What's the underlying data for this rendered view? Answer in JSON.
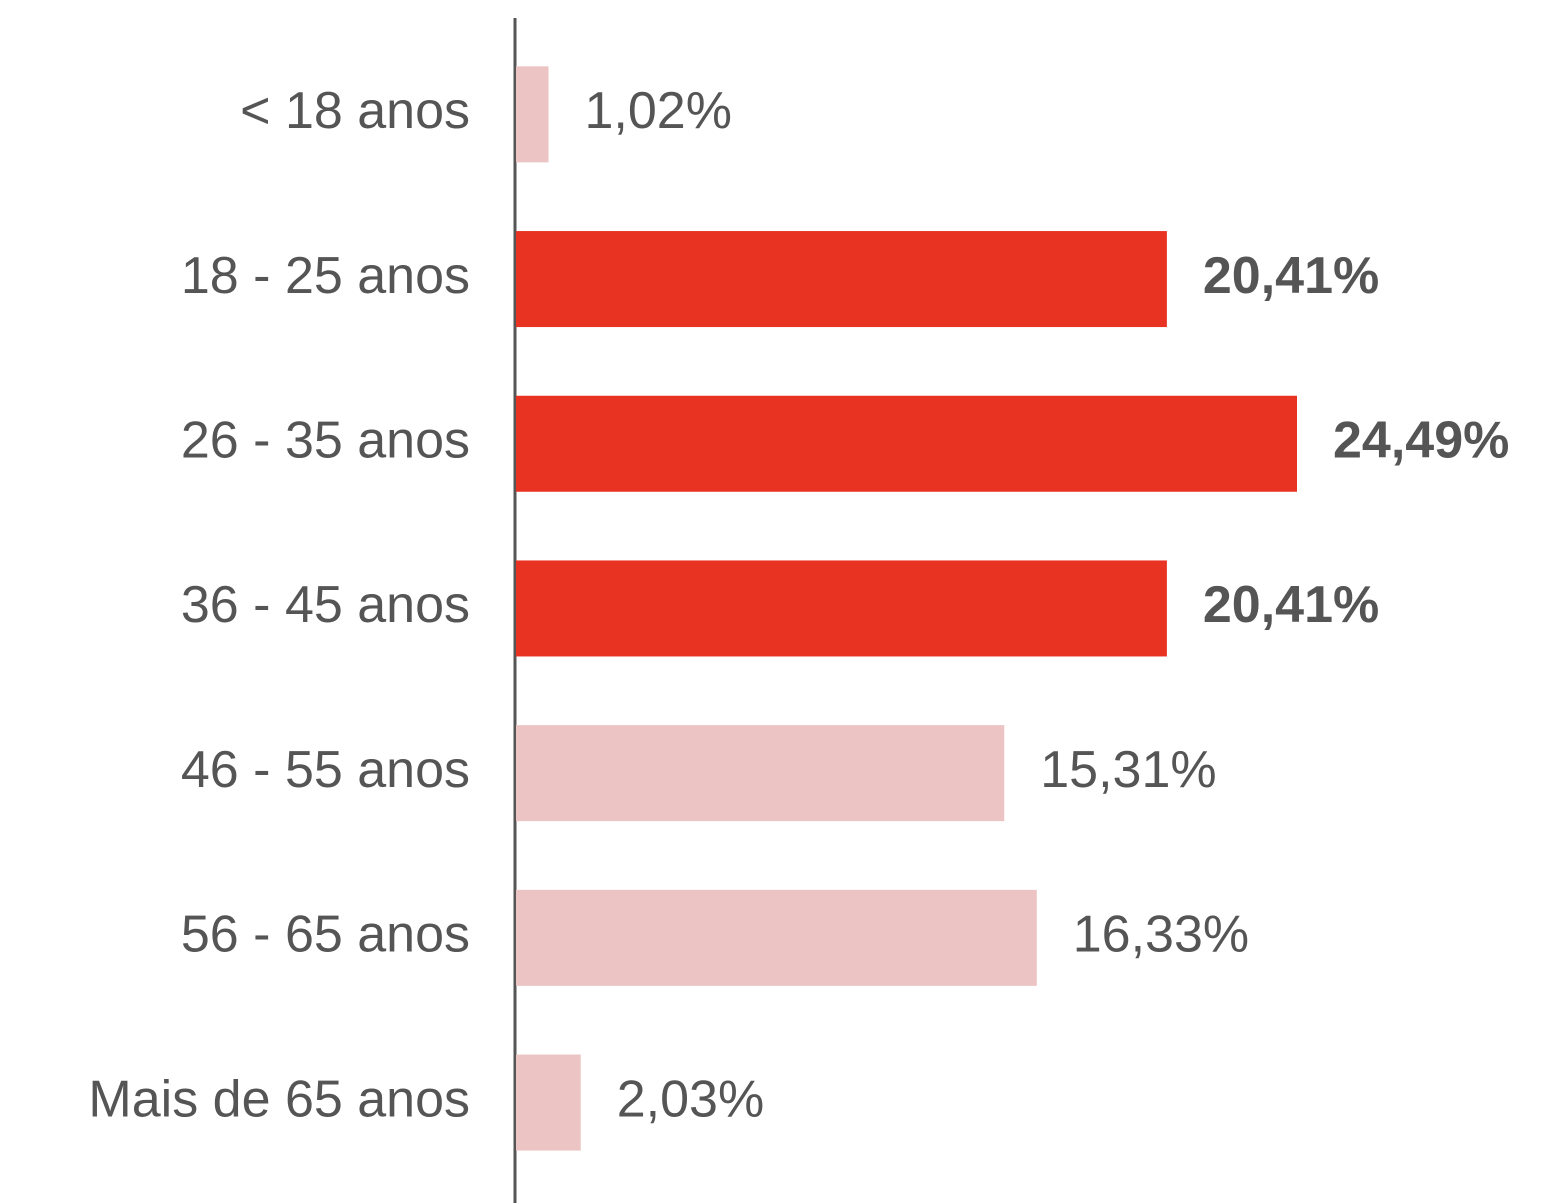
{
  "chart_data": {
    "type": "hbar",
    "categories": [
      "< 18 anos",
      "18 - 25 anos",
      "26 - 35 anos",
      "36 - 45 anos",
      "46 - 55 anos",
      "56 - 65 anos",
      "Mais de 65 anos"
    ],
    "values": [
      1.02,
      20.41,
      24.49,
      20.41,
      15.31,
      16.33,
      2.03
    ],
    "value_labels": [
      "1,02%",
      "20,41%",
      "24,49%",
      "20,41%",
      "15,31%",
      "16,33%",
      "2,03%"
    ],
    "colors": [
      "#ebc4c3",
      "#e83323",
      "#e83323",
      "#e83323",
      "#ebc4c3",
      "#ebc4c3",
      "#ebc4c3"
    ],
    "value_label_bold": [
      false,
      true,
      true,
      true,
      false,
      false,
      false
    ]
  }
}
